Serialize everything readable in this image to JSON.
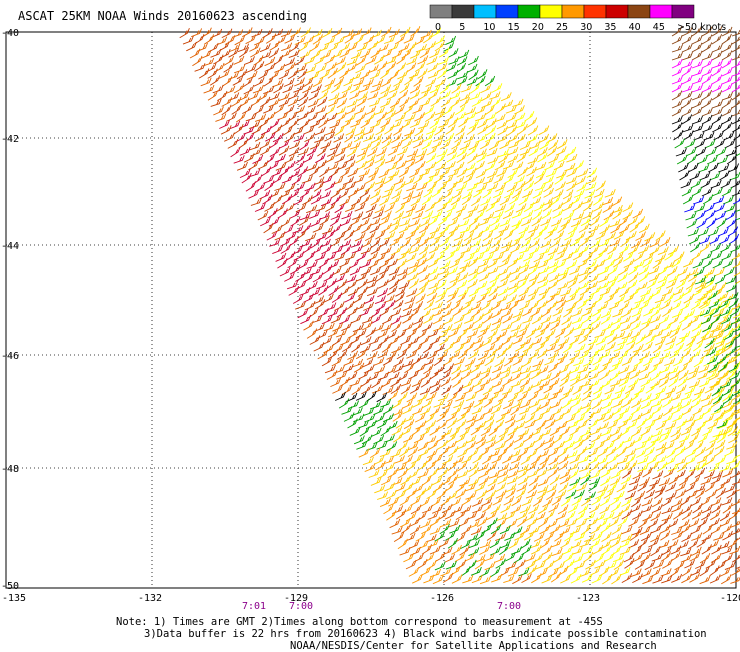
{
  "title": "ASCAT 25KM NOAA Winds 20160623 ascending",
  "color_scale": {
    "labels": [
      "0",
      "5",
      "10",
      "15",
      "20",
      "25",
      "30",
      "35",
      "40",
      "45",
      ">50 knots"
    ],
    "colors": [
      "#7f7f7f",
      "#3a3a3a",
      "#00bfff",
      "#0040ff",
      "#00b000",
      "#ffff00",
      "#ff9900",
      "#ff3300",
      "#cc0000",
      "#8b4513",
      "#ff00ff",
      "#800080"
    ]
  },
  "latitude_labels": [
    "-40",
    "-42",
    "-44",
    "-46",
    "-48",
    "-50"
  ],
  "longitude_labels": [
    "-135",
    "-132",
    "-129",
    "-126",
    "-123",
    "-120"
  ],
  "time_labels": [
    {
      "text": "7:01",
      "color": "#8b008b"
    },
    {
      "text": "7:00",
      "color": "#8b008b"
    },
    {
      "text": "7:00",
      "color": "#8b008b"
    }
  ],
  "notes": {
    "line1": "Note: 1) Times are GMT 2)Times along bottom correspond to measurement at -45S",
    "line2": "3)Data buffer is 22 hrs from 20160623 4) Black wind barbs indicate possible contamination",
    "line3": "NOAA/NESDIS/Center for Satellite Applications and Research"
  },
  "barb_colors": {
    "light": "#ffff00",
    "mid": "#ffcc00",
    "orange": "#ff9900",
    "dark_orange": "#e06000",
    "red_brown": "#c84000",
    "crimson": "#cc0033",
    "brown": "#8b4513",
    "green": "#00a000",
    "black": "#000000",
    "blue": "#0000ff",
    "magenta": "#ff00ff"
  }
}
